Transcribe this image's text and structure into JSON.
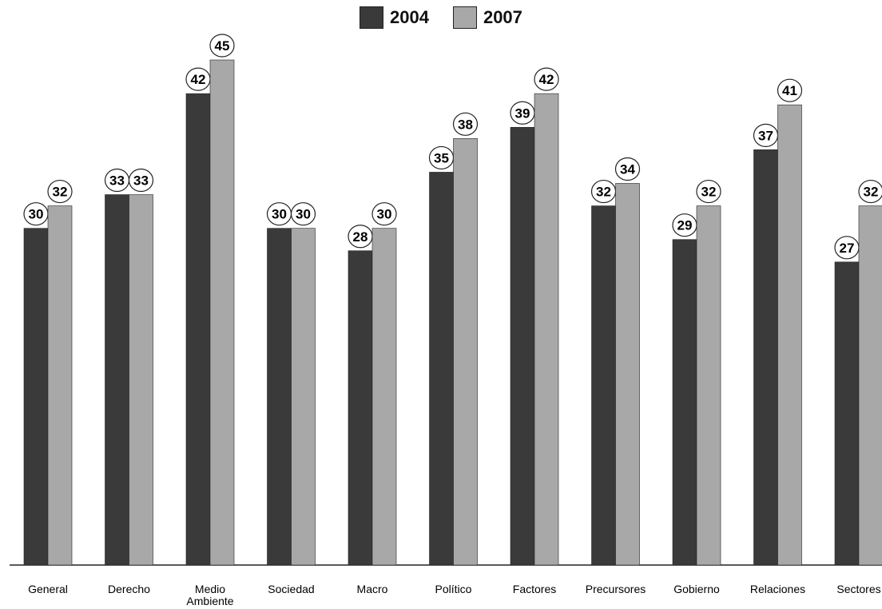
{
  "chart_data": {
    "type": "bar",
    "title": "",
    "xlabel": "",
    "ylabel": "",
    "categories": [
      "General",
      "Derecho",
      "Medio Ambiente",
      "Sociedad",
      "Macro",
      "Político",
      "Factores",
      "Precursores",
      "Gobierno",
      "Relaciones",
      "Sectores"
    ],
    "category_lines": [
      [
        "General"
      ],
      [
        "Derecho"
      ],
      [
        "Medio",
        "Ambiente"
      ],
      [
        "Sociedad"
      ],
      [
        "Macro"
      ],
      [
        "Político"
      ],
      [
        "Factores"
      ],
      [
        "Precursores"
      ],
      [
        "Gobierno"
      ],
      [
        "Relaciones"
      ],
      [
        "Sectores"
      ]
    ],
    "series": [
      {
        "name": "2004",
        "values": [
          30,
          33,
          42,
          30,
          28,
          35,
          39,
          32,
          29,
          37,
          27
        ],
        "color": "#3a3a3a"
      },
      {
        "name": "2007",
        "values": [
          32,
          33,
          45,
          30,
          30,
          38,
          42,
          34,
          32,
          41,
          32
        ],
        "color": "#a8a8a8"
      }
    ],
    "ylim": [
      0,
      47
    ],
    "grid": false,
    "legend_position": "top-center",
    "data_labels": "circled values above bars"
  },
  "legend": [
    {
      "label": "2004",
      "color": "#3a3a3a"
    },
    {
      "label": "2007",
      "color": "#a8a8a8"
    }
  ]
}
